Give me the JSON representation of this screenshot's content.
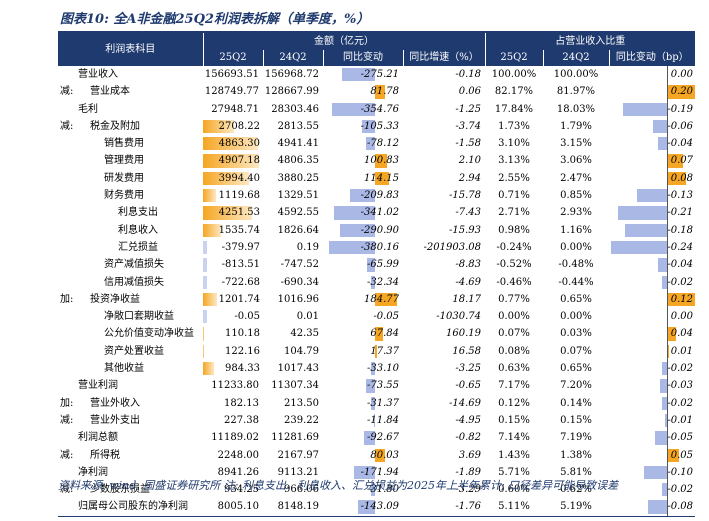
{
  "title": "图表10: 全A非金融25Q2利润表拆解（单季度，%）",
  "header": {
    "item_col": "利润表科目",
    "group_amount": "金额（亿元）",
    "group_share": "占营业收入比重",
    "cols": [
      "25Q2",
      "24Q2",
      "同比变动",
      "同比增速（%）",
      "25Q2",
      "24Q2",
      "同比变动（bp）"
    ]
  },
  "colors": {
    "header": "#1f3a6e",
    "neg_bar": "#aab8e6",
    "pos_bar": "#f5a623",
    "data_bar": "#f5a623"
  },
  "rows": [
    {
      "prefix": "",
      "name": "营业收入",
      "indent": 0,
      "q25": "156693.51",
      "q24": "156968.72",
      "chg": "-275.21",
      "yoy": "-0.18",
      "s25": "100.00%",
      "s24": "100.00%",
      "bp": "0.00"
    },
    {
      "prefix": "减:",
      "name": "营业成本",
      "indent": 1,
      "q25": "128749.77",
      "q24": "128667.99",
      "chg": "81.78",
      "yoy": "0.06",
      "s25": "82.17%",
      "s24": "81.97%",
      "bp": "0.20"
    },
    {
      "prefix": "",
      "name": "毛利",
      "indent": 0,
      "q25": "27948.71",
      "q24": "28303.46",
      "chg": "-354.76",
      "yoy": "-1.25",
      "s25": "17.84%",
      "s24": "18.03%",
      "bp": "-0.19"
    },
    {
      "prefix": "减:",
      "name": "税金及附加",
      "indent": 1,
      "q25": "2708.22",
      "q24": "2813.55",
      "chg": "-105.33",
      "yoy": "-3.74",
      "s25": "1.73%",
      "s24": "1.79%",
      "bp": "-0.06"
    },
    {
      "prefix": "",
      "name": "销售费用",
      "indent": 2,
      "q25": "4863.30",
      "q24": "4941.41",
      "chg": "-78.12",
      "yoy": "-1.58",
      "s25": "3.10%",
      "s24": "3.15%",
      "bp": "-0.04"
    },
    {
      "prefix": "",
      "name": "管理费用",
      "indent": 2,
      "q25": "4907.18",
      "q24": "4806.35",
      "chg": "100.83",
      "yoy": "2.10",
      "s25": "3.13%",
      "s24": "3.06%",
      "bp": "0.07"
    },
    {
      "prefix": "",
      "name": "研发费用",
      "indent": 2,
      "q25": "3994.40",
      "q24": "3880.25",
      "chg": "114.15",
      "yoy": "2.94",
      "s25": "2.55%",
      "s24": "2.47%",
      "bp": "0.08"
    },
    {
      "prefix": "",
      "name": "财务费用",
      "indent": 2,
      "q25": "1119.68",
      "q24": "1329.51",
      "chg": "-209.83",
      "yoy": "-15.78",
      "s25": "0.71%",
      "s24": "0.85%",
      "bp": "-0.13"
    },
    {
      "prefix": "",
      "name": "利息支出",
      "indent": 3,
      "q25": "4251.53",
      "q24": "4592.55",
      "chg": "-341.02",
      "yoy": "-7.43",
      "s25": "2.71%",
      "s24": "2.93%",
      "bp": "-0.21"
    },
    {
      "prefix": "",
      "name": "利息收入",
      "indent": 3,
      "q25": "1535.74",
      "q24": "1826.64",
      "chg": "-290.90",
      "yoy": "-15.93",
      "s25": "0.98%",
      "s24": "1.16%",
      "bp": "-0.18"
    },
    {
      "prefix": "",
      "name": "汇兑损益",
      "indent": 3,
      "q25": "-379.97",
      "q24": "0.19",
      "chg": "-380.16",
      "yoy": "-201903.08",
      "s25": "-0.24%",
      "s24": "0.00%",
      "bp": "-0.24"
    },
    {
      "prefix": "",
      "name": "资产减值损失",
      "indent": 2,
      "q25": "-813.51",
      "q24": "-747.52",
      "chg": "-65.99",
      "yoy": "-8.83",
      "s25": "-0.52%",
      "s24": "-0.48%",
      "bp": "-0.04"
    },
    {
      "prefix": "",
      "name": "信用减值损失",
      "indent": 2,
      "q25": "-722.68",
      "q24": "-690.34",
      "chg": "-32.34",
      "yoy": "-4.69",
      "s25": "-0.46%",
      "s24": "-0.44%",
      "bp": "-0.02"
    },
    {
      "prefix": "加:",
      "name": "投资净收益",
      "indent": 1,
      "q25": "1201.74",
      "q24": "1016.96",
      "chg": "184.77",
      "yoy": "18.17",
      "s25": "0.77%",
      "s24": "0.65%",
      "bp": "0.12"
    },
    {
      "prefix": "",
      "name": "净敞口套期收益",
      "indent": 2,
      "q25": "-0.05",
      "q24": "0.01",
      "chg": "-0.05",
      "yoy": "-1030.74",
      "s25": "0.00%",
      "s24": "0.00%",
      "bp": "0.00"
    },
    {
      "prefix": "",
      "name": "公允价值变动净收益",
      "indent": 2,
      "q25": "110.18",
      "q24": "42.35",
      "chg": "67.84",
      "yoy": "160.19",
      "s25": "0.07%",
      "s24": "0.03%",
      "bp": "0.04"
    },
    {
      "prefix": "",
      "name": "资产处置收益",
      "indent": 2,
      "q25": "122.16",
      "q24": "104.79",
      "chg": "17.37",
      "yoy": "16.58",
      "s25": "0.08%",
      "s24": "0.07%",
      "bp": "0.01"
    },
    {
      "prefix": "",
      "name": "其他收益",
      "indent": 2,
      "q25": "984.33",
      "q24": "1017.43",
      "chg": "-33.10",
      "yoy": "-3.25",
      "s25": "0.63%",
      "s24": "0.65%",
      "bp": "-0.02"
    },
    {
      "prefix": "",
      "name": "营业利润",
      "indent": 0,
      "q25": "11233.80",
      "q24": "11307.34",
      "chg": "-73.55",
      "yoy": "-0.65",
      "s25": "7.17%",
      "s24": "7.20%",
      "bp": "-0.03"
    },
    {
      "prefix": "加:",
      "name": "营业外收入",
      "indent": 1,
      "q25": "182.13",
      "q24": "213.50",
      "chg": "-31.37",
      "yoy": "-14.69",
      "s25": "0.12%",
      "s24": "0.14%",
      "bp": "-0.02"
    },
    {
      "prefix": "减:",
      "name": "营业外支出",
      "indent": 1,
      "q25": "227.38",
      "q24": "239.22",
      "chg": "-11.84",
      "yoy": "-4.95",
      "s25": "0.15%",
      "s24": "0.15%",
      "bp": "-0.01"
    },
    {
      "prefix": "",
      "name": "利润总额",
      "indent": 0,
      "q25": "11189.02",
      "q24": "11281.69",
      "chg": "-92.67",
      "yoy": "-0.82",
      "s25": "7.14%",
      "s24": "7.19%",
      "bp": "-0.05"
    },
    {
      "prefix": "减:",
      "name": "所得税",
      "indent": 1,
      "q25": "2248.00",
      "q24": "2167.97",
      "chg": "80.03",
      "yoy": "3.69",
      "s25": "1.43%",
      "s24": "1.38%",
      "bp": "0.05"
    },
    {
      "prefix": "",
      "name": "净利润",
      "indent": 0,
      "q25": "8941.26",
      "q24": "9113.21",
      "chg": "-171.94",
      "yoy": "-1.89",
      "s25": "5.71%",
      "s24": "5.81%",
      "bp": "-0.10"
    },
    {
      "prefix": "减:",
      "name": "少数股东损益",
      "indent": 1,
      "q25": "934.25",
      "q24": "966.06",
      "chg": "-31.80",
      "yoy": "-3.29",
      "s25": "0.60%",
      "s24": "0.62%",
      "bp": "-0.02"
    },
    {
      "prefix": "",
      "name": "归属母公司股东的净利润",
      "indent": 0,
      "q25": "8005.10",
      "q24": "8148.19",
      "chg": "-143.09",
      "yoy": "-1.76",
      "s25": "5.11%",
      "s24": "5.19%",
      "bp": "-0.08"
    }
  ],
  "databar_rows": [
    3,
    4,
    5,
    6,
    7,
    8,
    9,
    10,
    11,
    12,
    13,
    14,
    15,
    16,
    17
  ],
  "source": "资料来源: wind, 国盛证券研究所 注: 利息支出、利息收入、汇兑损益为2025年上半年累计; 口径差异可能导致误差"
}
